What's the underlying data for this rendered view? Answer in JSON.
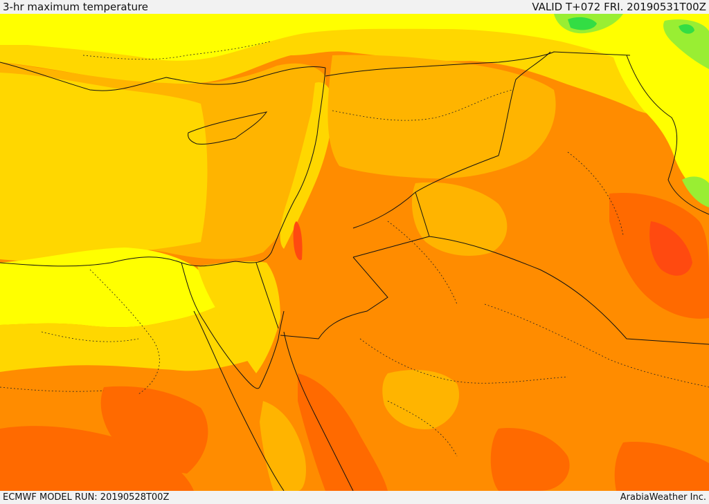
{
  "header": {
    "title": "3-hr maximum temperature",
    "valid": "VALID T+072 FRI. 20190531T00Z"
  },
  "footer": {
    "model_run": "ECMWF MODEL RUN: 20190528T00Z",
    "provider": "ArabiaWeather Inc."
  },
  "map": {
    "region": "Eastern Mediterranean / Levant / Northern Arabia",
    "colors": {
      "cool_green": "#33dd44",
      "light_green": "#99ee33",
      "yellow": "#ffff00",
      "gold": "#ffd700",
      "amber": "#ffb400",
      "orange": "#ff8c00",
      "dark_orange": "#ff6a00",
      "red_orange": "#ff4a10",
      "border_line": "#111111"
    }
  }
}
